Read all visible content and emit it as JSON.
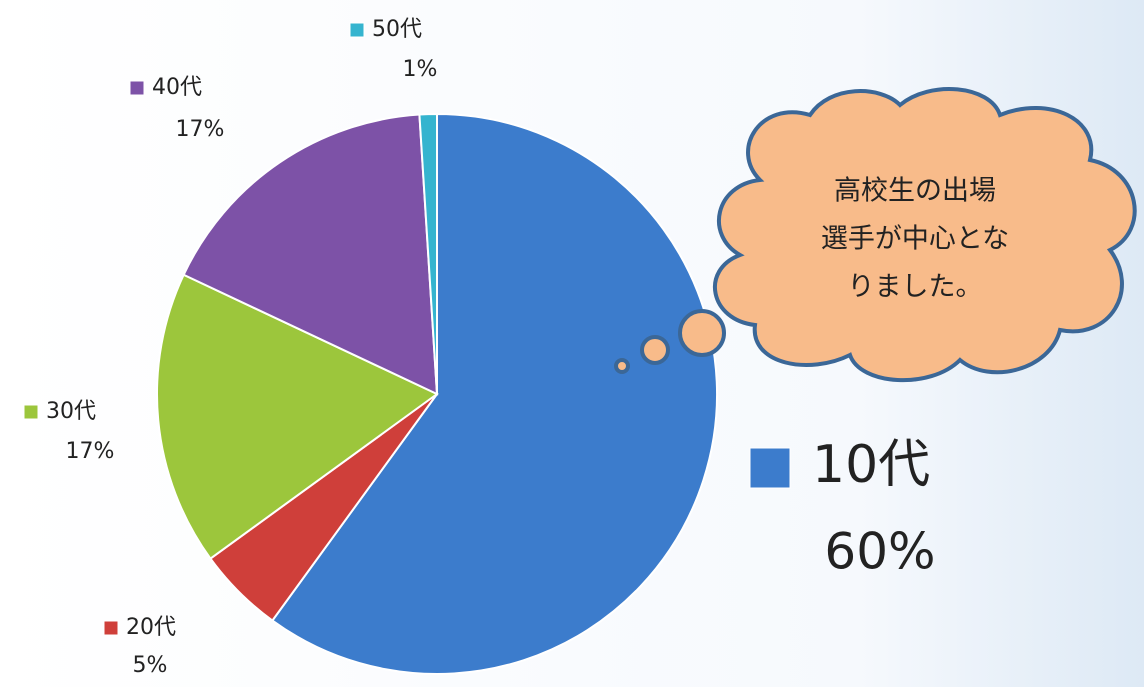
{
  "chart_data": {
    "type": "pie",
    "categories": [
      "10代",
      "20代",
      "30代",
      "40代",
      "50代"
    ],
    "values": [
      60,
      5,
      17,
      17,
      1
    ],
    "value_labels": [
      "60%",
      "5%",
      "17%",
      "17%",
      "1%"
    ],
    "colors": [
      "#3c7ccc",
      "#cf3f3a",
      "#9cc63c",
      "#7d52a7",
      "#35b4cf"
    ],
    "annotation": [
      "高校生の出場",
      "選手が中心とな",
      "りました。"
    ]
  }
}
